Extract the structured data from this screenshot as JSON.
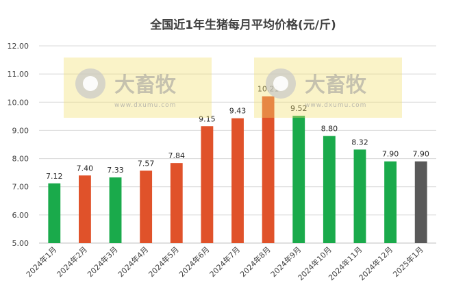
{
  "chart_data": {
    "type": "bar",
    "title": "全国近1年生猪每月平均价格(元/斤)",
    "categories": [
      "2024年1月",
      "2024年2月",
      "2024年3月",
      "2024年4月",
      "2024年5月",
      "2024年6月",
      "2024年7月",
      "2024年8月",
      "2024年9月",
      "2024年10月",
      "2024年11月",
      "2024年12月",
      "2025年1月"
    ],
    "values": [
      7.12,
      7.4,
      7.33,
      7.57,
      7.84,
      9.15,
      9.43,
      10.21,
      9.52,
      8.8,
      8.32,
      7.9,
      7.9
    ],
    "value_labels": [
      "7.12",
      "7.40",
      "7.33",
      "7.57",
      "7.84",
      "9.15",
      "9.43",
      "10.21",
      "9.52",
      "8.80",
      "8.32",
      "7.90",
      "7.90"
    ],
    "bar_colors": [
      "#1aaa4b",
      "#e0522a",
      "#1aaa4b",
      "#e0522a",
      "#e0522a",
      "#e0522a",
      "#e0522a",
      "#e0522a",
      "#1aaa4b",
      "#1aaa4b",
      "#1aaa4b",
      "#1aaa4b",
      "#595959"
    ],
    "ylim": [
      5.0,
      12.0
    ],
    "yticks": [
      "5.00",
      "6.00",
      "7.00",
      "8.00",
      "9.00",
      "10.00",
      "11.00",
      "12.00"
    ],
    "grid": true,
    "xlabel": "",
    "ylabel": ""
  },
  "watermark": {
    "text": "大畜牧",
    "url": "www.dxumu.com"
  }
}
